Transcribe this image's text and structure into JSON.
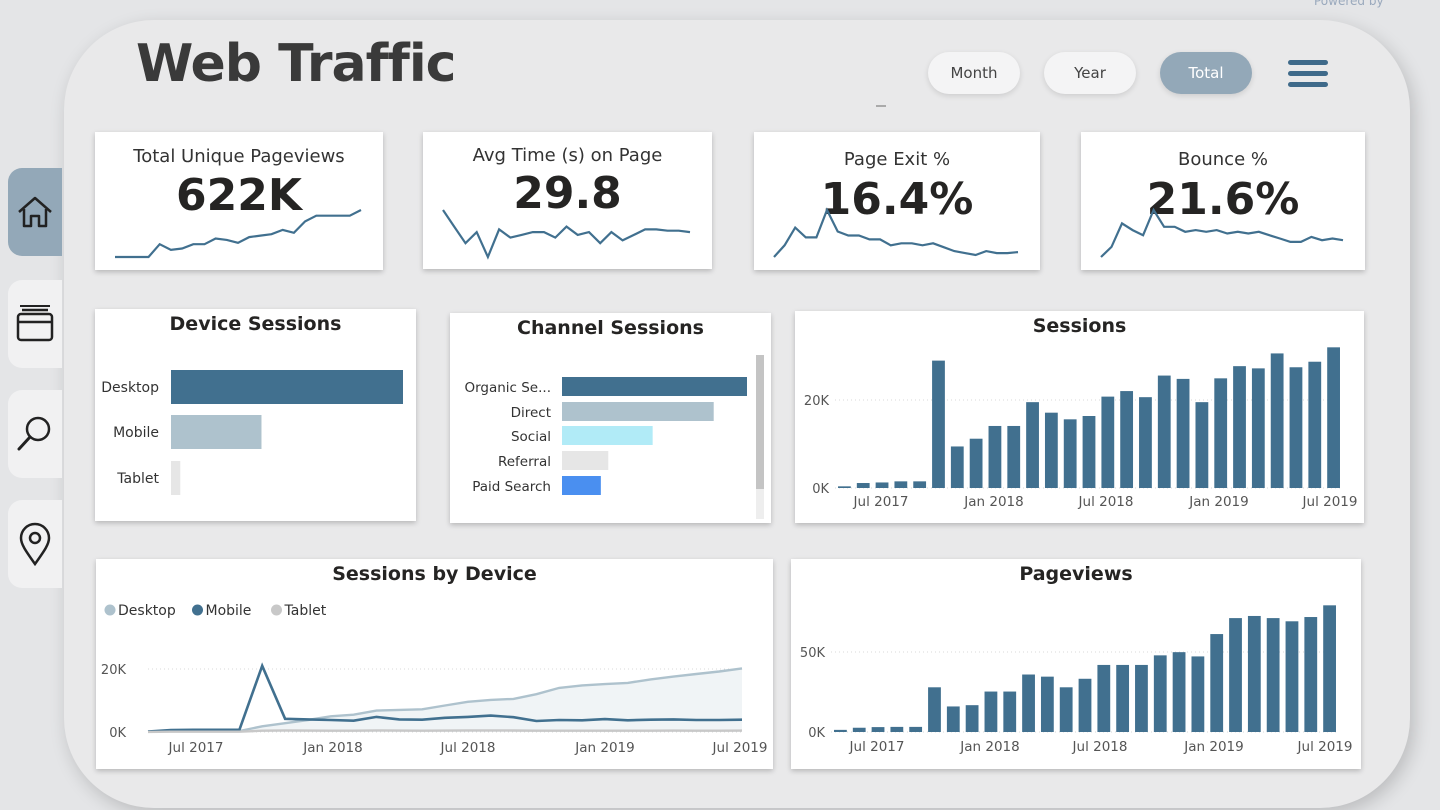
{
  "header": {
    "title": "Web Traffic",
    "powered_by": "Powered by",
    "filters": [
      {
        "label": "Month",
        "active": false
      },
      {
        "label": "Year",
        "active": false
      },
      {
        "label": "Total",
        "active": true
      }
    ]
  },
  "sidebar": {
    "items": [
      {
        "icon": "home-icon",
        "active": true
      },
      {
        "icon": "browser-window-icon",
        "active": false
      },
      {
        "icon": "search-icon",
        "active": false
      },
      {
        "icon": "map-pin-icon",
        "active": false
      }
    ]
  },
  "colors": {
    "primary": "#41708f",
    "light": "#aec2cd",
    "cyan": "#b1ebf7",
    "grey": "#e6e6e6",
    "blue": "#4a8ff0"
  },
  "kpis": [
    {
      "label": "Total Unique Pageviews",
      "value": "622K",
      "trend": [
        5,
        5,
        5,
        5,
        14,
        10,
        11,
        14,
        14,
        18,
        17,
        15,
        19,
        20,
        21,
        24,
        22,
        30,
        34,
        34,
        34,
        34,
        38
      ]
    },
    {
      "label": "Avg Time (s) on Page",
      "value": "29.8",
      "trend": [
        36,
        24,
        12,
        20,
        2,
        22,
        16,
        18,
        20,
        20,
        16,
        24,
        18,
        20,
        12,
        20,
        14,
        18,
        22,
        22,
        21,
        21,
        20
      ]
    },
    {
      "label": "Page Exit %",
      "value": "16.4%",
      "trend": [
        4,
        16,
        34,
        24,
        24,
        52,
        30,
        26,
        26,
        22,
        22,
        16,
        18,
        18,
        16,
        18,
        14,
        10,
        8,
        6,
        10,
        8,
        8,
        9
      ]
    },
    {
      "label": "Bounce %",
      "value": "21.6%",
      "trend": [
        4,
        16,
        44,
        36,
        30,
        60,
        40,
        40,
        34,
        36,
        34,
        36,
        32,
        34,
        32,
        34,
        30,
        26,
        22,
        22,
        28,
        24,
        26,
        24
      ]
    }
  ],
  "device_sessions": {
    "title": "Device Sessions",
    "categories": [
      "Desktop",
      "Mobile",
      "Tablet"
    ],
    "values": [
      100,
      39,
      4
    ]
  },
  "channel_sessions": {
    "title": "Channel Sessions",
    "categories": [
      "Organic Se...",
      "Direct",
      "Social",
      "Referral",
      "Paid Search"
    ],
    "values": [
      100,
      82,
      49,
      25,
      21
    ]
  },
  "chart_data": [
    {
      "type": "bar",
      "title": "Sessions",
      "x_ticks": [
        "Jul 2017",
        "Jan 2018",
        "Jul 2018",
        "Jan 2019",
        "Jul 2019"
      ],
      "y_ticks": [
        "0K",
        "20K"
      ],
      "ylim": [
        0,
        26000
      ],
      "values": [
        300,
        900,
        1000,
        1200,
        1200,
        23000,
        7500,
        8900,
        11200,
        11200,
        15500,
        13600,
        12400,
        13000,
        16500,
        17500,
        16400,
        20300,
        19700,
        15500,
        19800,
        22000,
        21600,
        24300,
        21800,
        22800,
        25400
      ]
    },
    {
      "type": "line",
      "title": "Sessions by Device",
      "legend": [
        "Desktop",
        "Mobile",
        "Tablet"
      ],
      "x_ticks": [
        "Jul 2017",
        "Jan 2018",
        "Jul 2018",
        "Jan 2019",
        "Jul 2019"
      ],
      "y_ticks": [
        "0K",
        "20K"
      ],
      "ylim": [
        0,
        24000
      ],
      "series": [
        {
          "name": "Desktop",
          "values": [
            200,
            300,
            300,
            300,
            300,
            1800,
            2800,
            3800,
            5000,
            5500,
            6800,
            7000,
            7200,
            8400,
            9600,
            10200,
            10500,
            12000,
            14000,
            14800,
            15200,
            15600,
            16700,
            17600,
            18400,
            19200,
            20200
          ]
        },
        {
          "name": "Mobile",
          "values": [
            150,
            600,
            700,
            700,
            700,
            21000,
            4200,
            4000,
            3800,
            3600,
            4800,
            4000,
            3900,
            4500,
            4800,
            5200,
            4700,
            3500,
            3800,
            3700,
            4100,
            3700,
            3900,
            4000,
            3800,
            3800,
            3900
          ]
        },
        {
          "name": "Tablet",
          "values": [
            30,
            80,
            90,
            90,
            90,
            400,
            500,
            450,
            400,
            400,
            500,
            450,
            400,
            450,
            500,
            500,
            480,
            400,
            420,
            400,
            420,
            400,
            420,
            440,
            420,
            420,
            430
          ]
        }
      ]
    },
    {
      "type": "bar",
      "title": "Pageviews",
      "x_ticks": [
        "Jul 2017",
        "Jan 2018",
        "Jul 2018",
        "Jan 2019",
        "Jul 2019"
      ],
      "y_ticks": [
        "0K",
        "50K"
      ],
      "ylim": [
        0,
        62000
      ],
      "values": [
        1000,
        2000,
        2300,
        2400,
        2400,
        21000,
        12000,
        12600,
        19000,
        19000,
        27000,
        26000,
        21000,
        25000,
        31500,
        31500,
        31500,
        36000,
        37500,
        35500,
        46000,
        53500,
        54500,
        53500,
        52000,
        54000,
        59500
      ]
    }
  ]
}
